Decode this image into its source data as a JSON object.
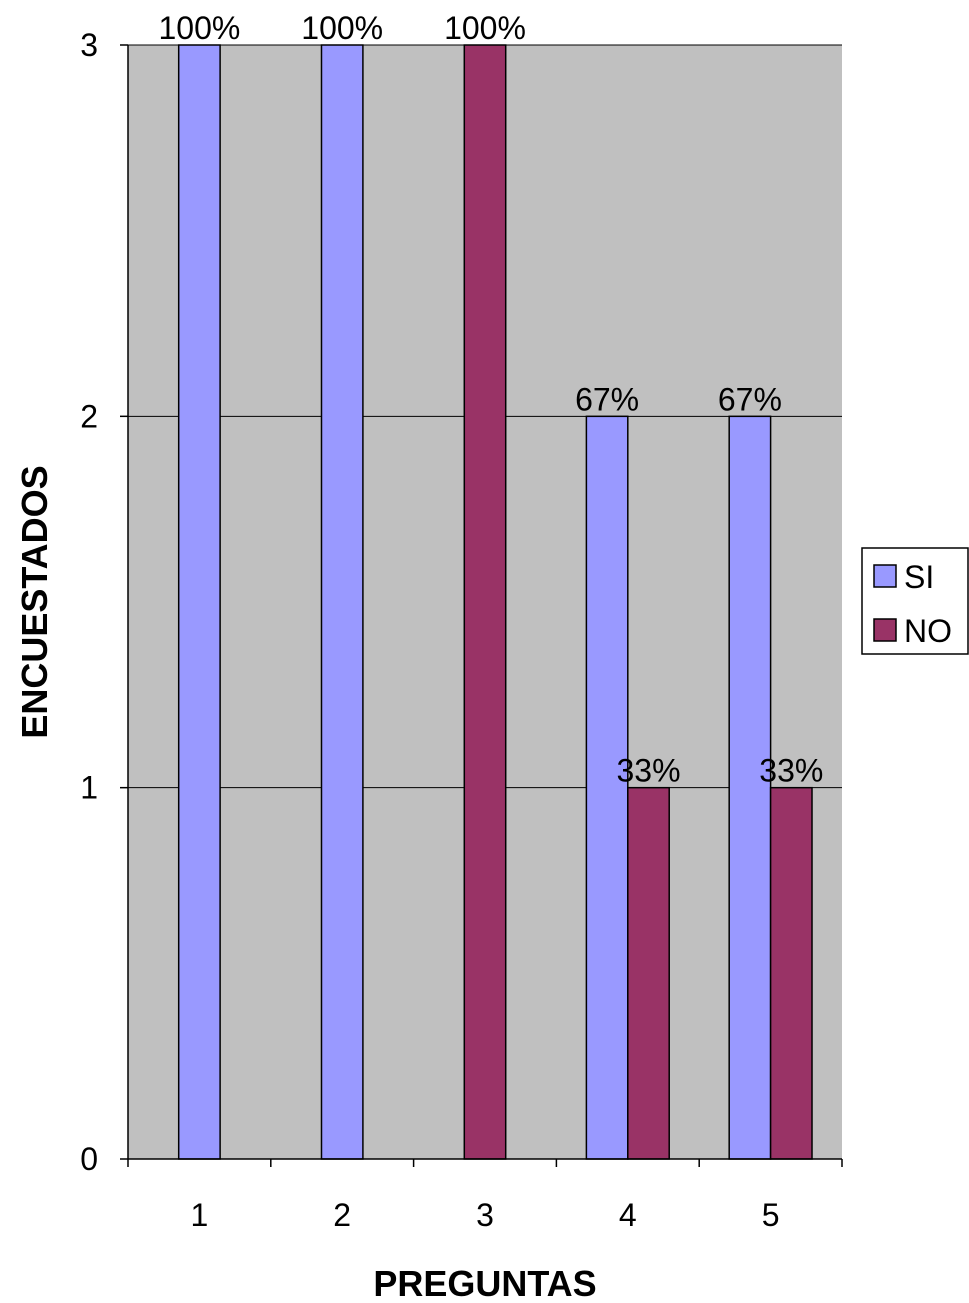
{
  "chart_data": {
    "type": "bar",
    "categories": [
      "1",
      "2",
      "3",
      "4",
      "5"
    ],
    "series": [
      {
        "name": "SI",
        "values": [
          3,
          3,
          0,
          2,
          2
        ],
        "labels": [
          "100%",
          "100%",
          "",
          "67%",
          "67%"
        ],
        "color": "#9999ff"
      },
      {
        "name": "NO",
        "values": [
          0,
          0,
          3,
          1,
          1
        ],
        "labels": [
          "",
          "",
          "100%",
          "33%",
          "33%"
        ],
        "color": "#993366"
      }
    ],
    "title": "",
    "xlabel": "PREGUNTAS",
    "ylabel": "ENCUESTADOS",
    "ylim": [
      0,
      3
    ],
    "yticks": [
      "0",
      "1",
      "2",
      "3"
    ],
    "grid": true,
    "plot_background": "#c0c0c0",
    "legend_position": "right"
  }
}
